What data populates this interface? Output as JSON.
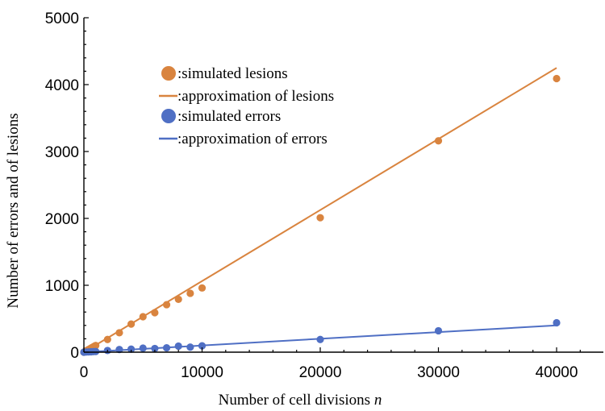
{
  "chart_data": {
    "type": "scatter",
    "xlabel": "Number of cell divisions",
    "xlabel_var": "n",
    "ylabel": "Number of errors and  of lesions",
    "xlim": [
      0,
      44000
    ],
    "ylim": [
      0,
      5000
    ],
    "x_ticks": [
      0,
      10000,
      20000,
      30000,
      40000
    ],
    "y_ticks": [
      0,
      1000,
      2000,
      3000,
      4000,
      5000
    ],
    "grid": false,
    "legend_position": "top-left",
    "series": [
      {
        "name": ":simulated lesions",
        "kind": "points",
        "color": "#D9843F",
        "x": [
          0,
          100,
          200,
          300,
          400,
          500,
          600,
          700,
          800,
          900,
          1000,
          2000,
          3000,
          4000,
          5000,
          6000,
          7000,
          8000,
          9000,
          10000,
          20000,
          30000,
          40000
        ],
        "y": [
          0,
          10,
          20,
          30,
          40,
          50,
          60,
          70,
          80,
          90,
          100,
          190,
          290,
          420,
          530,
          590,
          710,
          790,
          880,
          960,
          2010,
          3160,
          4090
        ]
      },
      {
        "name": ":approximation of lesions",
        "kind": "line",
        "color": "#D9843F",
        "x": [
          0,
          40000
        ],
        "y": [
          0,
          4250
        ]
      },
      {
        "name": ":simulated errors",
        "kind": "points",
        "color": "#4F6FC4",
        "x": [
          0,
          200,
          400,
          600,
          800,
          1000,
          2000,
          3000,
          4000,
          5000,
          6000,
          7000,
          8000,
          9000,
          10000,
          20000,
          30000,
          40000
        ],
        "y": [
          0,
          2,
          4,
          6,
          8,
          10,
          25,
          40,
          45,
          60,
          55,
          65,
          90,
          75,
          95,
          190,
          320,
          440
        ]
      },
      {
        "name": ":approximation of errors",
        "kind": "line",
        "color": "#4F6FC4",
        "x": [
          0,
          40000
        ],
        "y": [
          0,
          400
        ]
      }
    ]
  }
}
